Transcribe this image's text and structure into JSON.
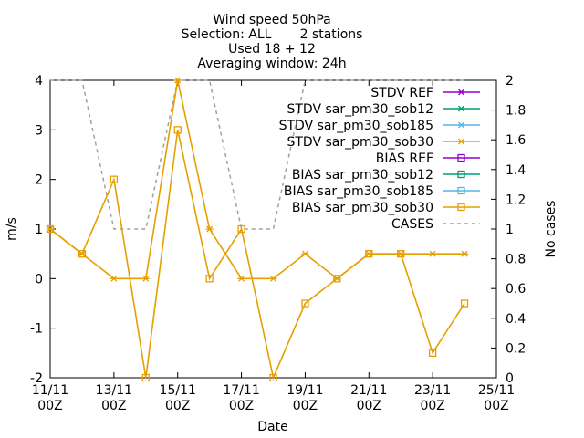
{
  "chart_data": {
    "type": "line",
    "title_lines": [
      "Wind speed 50hPa",
      "Selection: ALL       2 stations",
      "Used 18 + 12",
      "Averaging window: 24h"
    ],
    "xlabel": "Date",
    "ylabel": "m/s",
    "y2label": "No cases",
    "x_domain": [
      0,
      14
    ],
    "xticks": [
      {
        "x": 0,
        "l1": "11/11",
        "l2": "00Z"
      },
      {
        "x": 2,
        "l1": "13/11",
        "l2": "00Z"
      },
      {
        "x": 4,
        "l1": "15/11",
        "l2": "00Z"
      },
      {
        "x": 6,
        "l1": "17/11",
        "l2": "00Z"
      },
      {
        "x": 8,
        "l1": "19/11",
        "l2": "00Z"
      },
      {
        "x": 10,
        "l1": "21/11",
        "l2": "00Z"
      },
      {
        "x": 12,
        "l1": "23/11",
        "l2": "00Z"
      },
      {
        "x": 14,
        "l1": "25/11",
        "l2": "00Z"
      }
    ],
    "ylim": [
      -2,
      4
    ],
    "yticks": [
      -2,
      -1,
      0,
      1,
      2,
      3,
      4
    ],
    "y2lim": [
      0,
      2
    ],
    "y2ticks": [
      "0",
      "0.2",
      "0.4",
      "0.6",
      "0.8",
      "1",
      "1.2",
      "1.4",
      "1.6",
      "1.8",
      "2"
    ],
    "grid": false,
    "legend_position": "top-right",
    "legend": [
      {
        "label": "STDV REF",
        "color": "#9400d3",
        "marker": "star"
      },
      {
        "label": "STDV sar_pm30_sob12",
        "color": "#009e73",
        "marker": "star"
      },
      {
        "label": "STDV sar_pm30_sob185",
        "color": "#56b4e9",
        "marker": "star"
      },
      {
        "label": "STDV sar_pm30_sob30",
        "color": "#e69f00",
        "marker": "star"
      },
      {
        "label": "BIAS REF",
        "color": "#9400d3",
        "marker": "square"
      },
      {
        "label": "BIAS sar_pm30_sob12",
        "color": "#009e73",
        "marker": "square"
      },
      {
        "label": "BIAS sar_pm30_sob185",
        "color": "#56b4e9",
        "marker": "square"
      },
      {
        "label": "BIAS sar_pm30_sob30",
        "color": "#e69f00",
        "marker": "square"
      },
      {
        "label": "CASES",
        "color": "#a0a0a0",
        "marker": "dash"
      }
    ],
    "series": [
      {
        "name": "STDV sar_pm30_sob30",
        "color": "#e69f00",
        "marker": "star",
        "axis": "y",
        "x": [
          0,
          1,
          2,
          3,
          4,
          5,
          6,
          7,
          8,
          9,
          10,
          11,
          12,
          13
        ],
        "values": [
          1,
          0.5,
          0,
          0,
          4,
          1,
          0,
          0,
          0.5,
          0,
          0.5,
          0.5,
          0.5,
          0.5
        ]
      },
      {
        "name": "BIAS sar_pm30_sob30",
        "color": "#e69f00",
        "marker": "square",
        "axis": "y",
        "x": [
          0,
          1,
          2,
          3,
          4,
          5,
          6,
          7,
          8,
          9,
          10,
          11,
          12,
          13
        ],
        "values": [
          1,
          0.5,
          2,
          -2,
          3,
          0,
          1,
          -2,
          -0.5,
          0,
          0.5,
          0.5,
          -1.5,
          -0.5
        ]
      },
      {
        "name": "CASES",
        "color": "#a0a0a0",
        "marker": "none",
        "dashed": true,
        "axis": "y2",
        "x": [
          0,
          1,
          2,
          3,
          4,
          5,
          6,
          7,
          8,
          9,
          10,
          11,
          12,
          13
        ],
        "values": [
          2,
          2,
          1,
          1,
          2,
          2,
          1,
          1,
          2,
          2,
          2,
          2,
          2,
          2
        ]
      }
    ]
  }
}
